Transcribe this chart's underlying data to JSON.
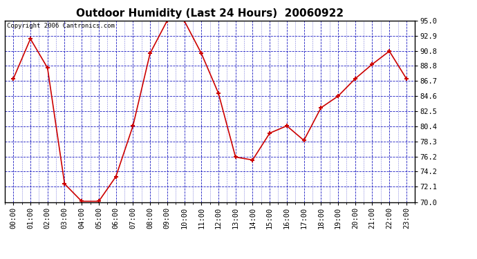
{
  "title": "Outdoor Humidity (Last 24 Hours)  20060922",
  "copyright_text": "Copyright 2006 Cantronics.com",
  "x_labels": [
    "00:00",
    "01:00",
    "02:00",
    "03:00",
    "04:00",
    "05:00",
    "06:00",
    "07:00",
    "08:00",
    "09:00",
    "10:00",
    "11:00",
    "12:00",
    "13:00",
    "14:00",
    "15:00",
    "16:00",
    "17:00",
    "18:00",
    "19:00",
    "20:00",
    "21:00",
    "22:00",
    "23:00"
  ],
  "y_values": [
    87.0,
    92.5,
    88.5,
    72.5,
    70.1,
    70.1,
    73.5,
    80.5,
    90.5,
    95.0,
    95.0,
    90.5,
    85.0,
    76.2,
    75.8,
    79.5,
    80.5,
    78.5,
    83.0,
    84.6,
    87.0,
    89.0,
    90.8,
    87.0
  ],
  "line_color": "#cc0000",
  "marker_color": "#cc0000",
  "background_color": "#ffffff",
  "plot_bg_color": "#ffffff",
  "grid_color": "#0000bb",
  "title_fontsize": 11,
  "title_fontfamily": "DejaVu Sans",
  "ylim_min": 70.0,
  "ylim_max": 95.0,
  "ytick_values": [
    70.0,
    72.1,
    74.2,
    76.2,
    78.3,
    80.4,
    82.5,
    84.6,
    86.7,
    88.8,
    90.8,
    92.9,
    95.0
  ],
  "tick_fontsize": 7.5,
  "copyright_fontsize": 6.5
}
